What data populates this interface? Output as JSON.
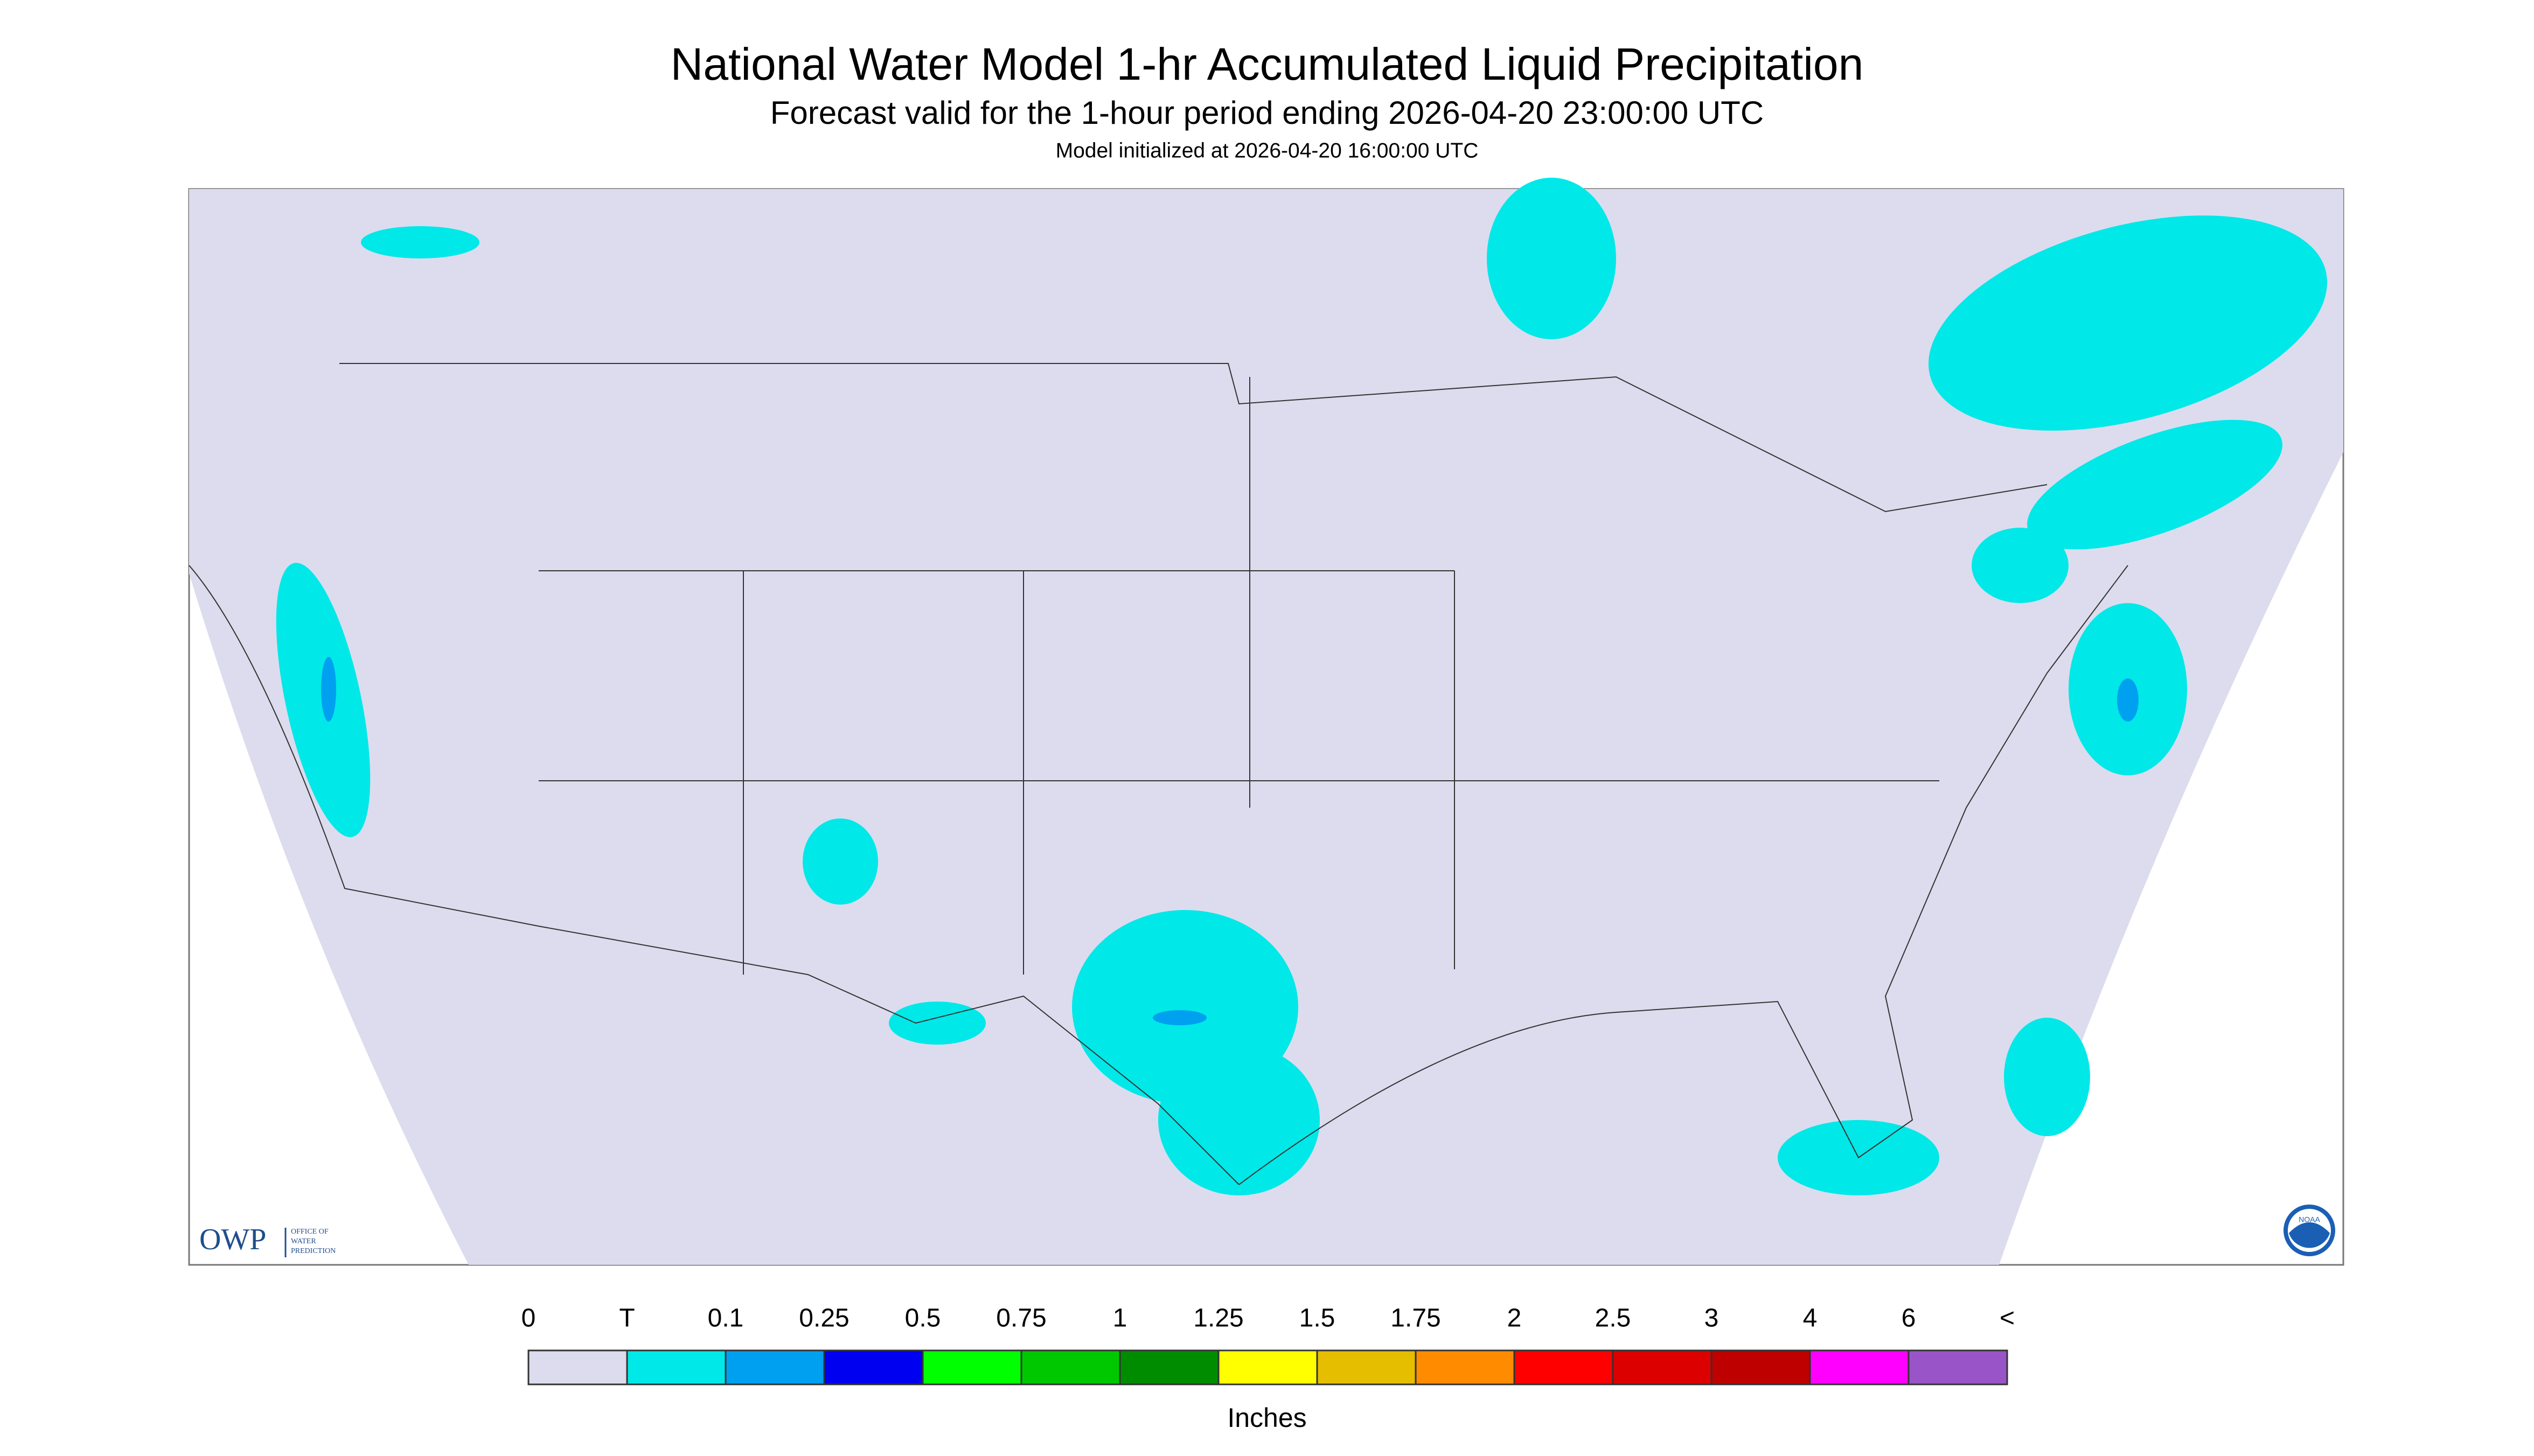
{
  "header": {
    "title": "National Water Model 1-hr Accumulated Liquid Precipitation",
    "subtitle": "Forecast valid for the 1-hour period ending 2026-04-20 23:00:00 UTC",
    "note": "Model initialized at 2026-04-20 16:00:00 UTC"
  },
  "legend": {
    "labels": [
      "0",
      "T",
      "0.1",
      "0.25",
      "0.5",
      "0.75",
      "1",
      "1.25",
      "1.5",
      "1.75",
      "2",
      "2.5",
      "3",
      "4",
      "6",
      "<"
    ],
    "colors": [
      "#dcdcee",
      "#00e8e8",
      "#00a0f0",
      "#0000f0",
      "#00ff00",
      "#00c800",
      "#008c00",
      "#ffff00",
      "#e6be00",
      "#ff8c00",
      "#ff0000",
      "#dc0000",
      "#be0000",
      "#ff00ff",
      "#9955c8"
    ],
    "unit": "Inches"
  },
  "logos": {
    "owp": "OWP",
    "owp_full": [
      "OFFICE OF",
      "WATER",
      "PREDICTION"
    ],
    "noaa": "NOAA"
  }
}
